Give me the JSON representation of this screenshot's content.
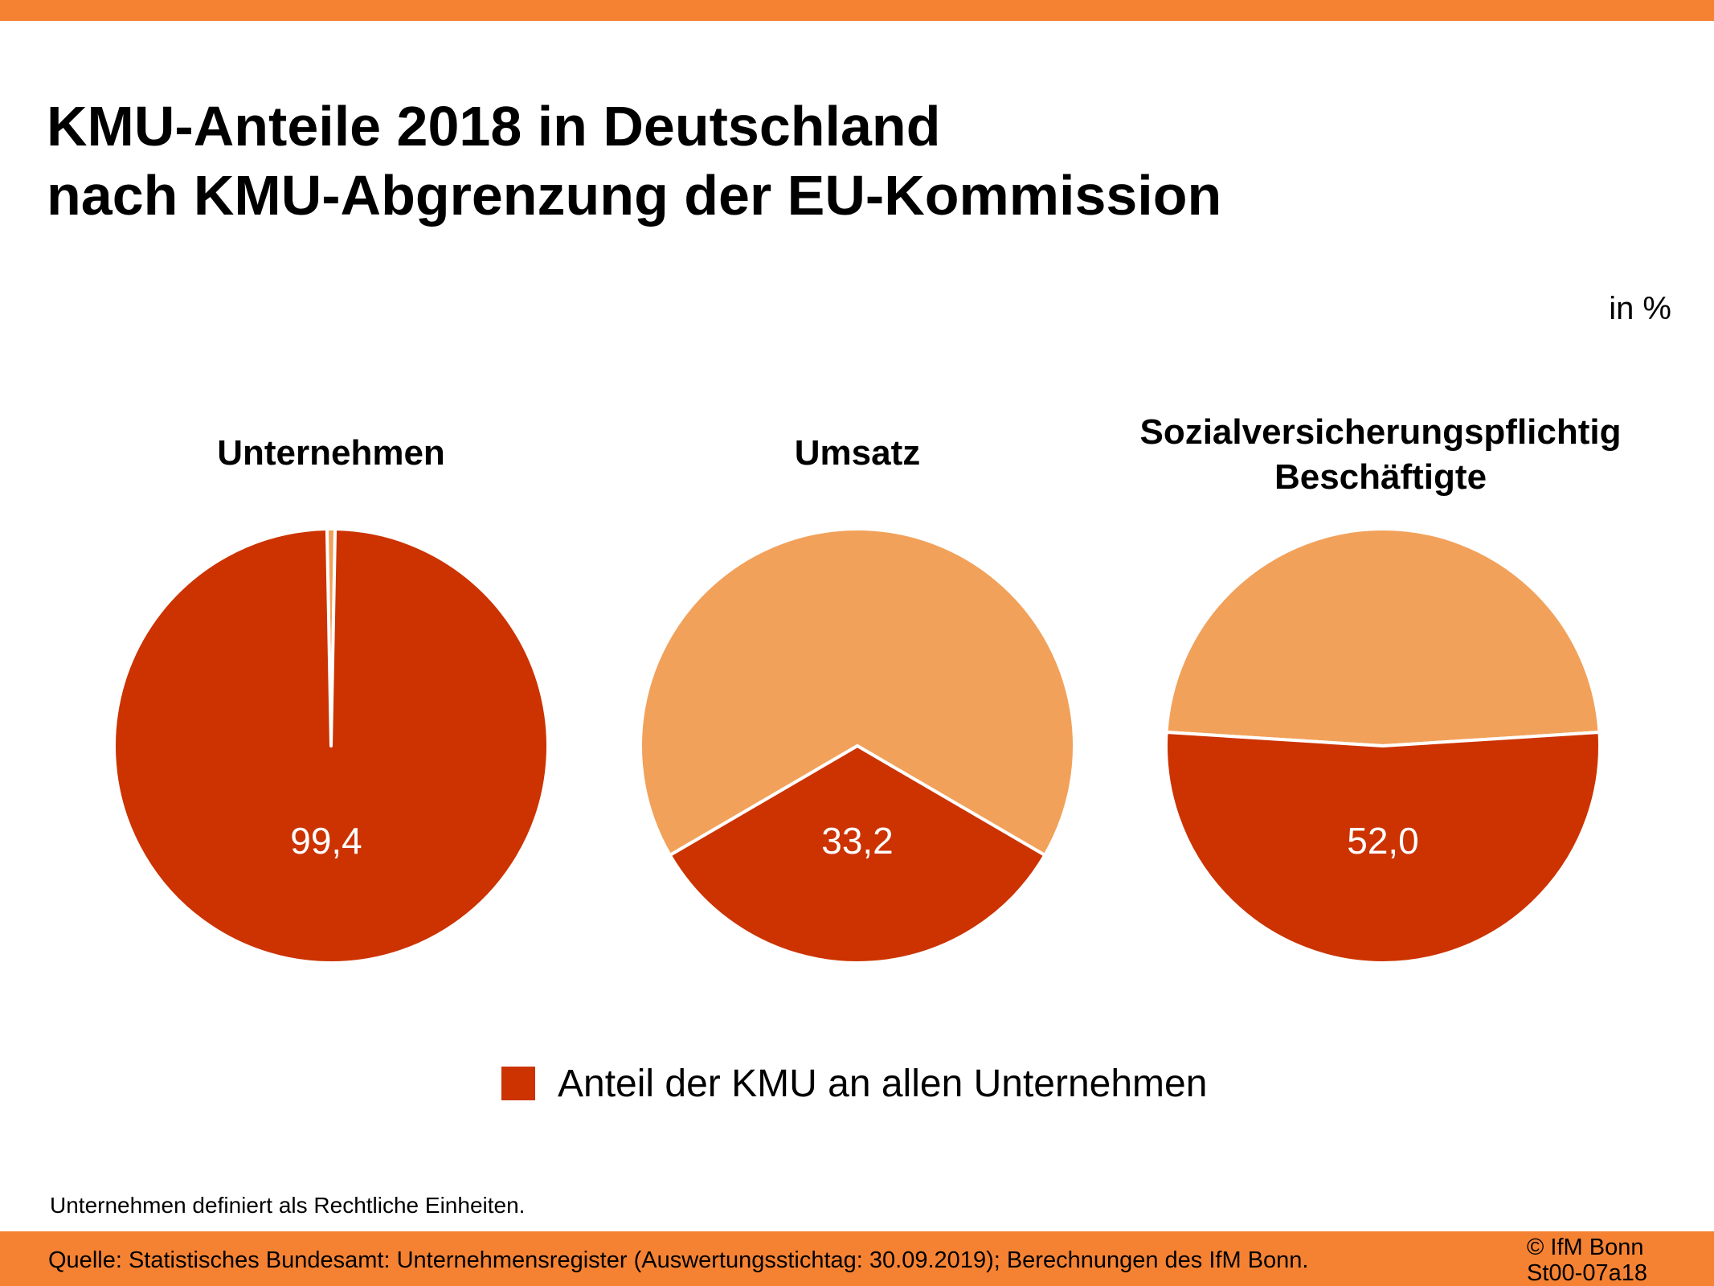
{
  "title_lines": [
    "KMU-Anteile 2018 in Deutschland",
    "nach KMU-Abgrenzung der EU-Kommission"
  ],
  "unit": "in %",
  "colors": {
    "kmu": "#cc3300",
    "other": "#f2a15a",
    "bar": "#f58233"
  },
  "chart_data": [
    {
      "type": "pie",
      "title": "Unternehmen",
      "slices": [
        {
          "label": "Anteil der KMU an allen Unternehmen",
          "value": 99.4,
          "value_label": "99,4"
        },
        {
          "label": "",
          "value": 0.6
        }
      ]
    },
    {
      "type": "pie",
      "title": "Umsatz",
      "slices": [
        {
          "label": "Anteil der KMU an allen Unternehmen",
          "value": 33.2,
          "value_label": "33,2"
        },
        {
          "label": "",
          "value": 66.8
        }
      ]
    },
    {
      "type": "pie",
      "title": "Sozialversicherungspflichtig Beschäftigte",
      "title_lines": [
        "Sozialversicherungspflichtig",
        "Beschäftigte"
      ],
      "slices": [
        {
          "label": "Anteil der KMU an allen Unternehmen",
          "value": 52.0,
          "value_label": "52,0"
        },
        {
          "label": "",
          "value": 48.0
        }
      ]
    }
  ],
  "legend": {
    "label": "Anteil der KMU an allen Unternehmen"
  },
  "footnote": "Unternehmen definiert als Rechtliche Einheiten.",
  "source": "Quelle: Statistisches Bundesamt: Unternehmensregister (Auswertungsstichtag: 30.09.2019); Berechnungen des IfM Bonn.",
  "copyright_lines": [
    "© IfM Bonn",
    "St00-07a18"
  ]
}
